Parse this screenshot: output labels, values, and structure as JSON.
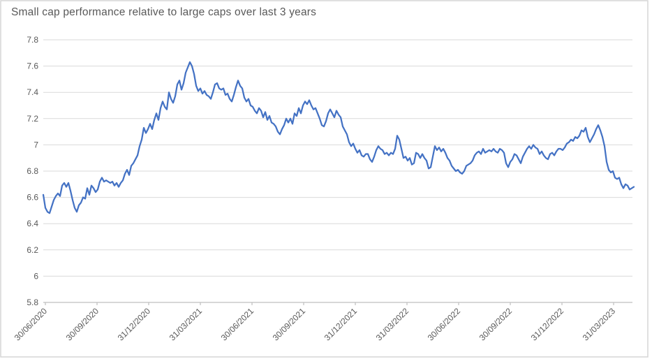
{
  "chart_data": {
    "type": "line",
    "title": "Small cap performance relative to large caps over last 3 years",
    "xlabel": "",
    "ylabel": "",
    "ylim": [
      5.8,
      7.8
    ],
    "grid": true,
    "legend": "none",
    "y_tick_labels": [
      "7.8",
      "7.6",
      "7.4",
      "7.2",
      "7",
      "6.8",
      "6.6",
      "6.4",
      "6.2",
      "6",
      "5.8"
    ],
    "x_tick_labels": [
      "30/06/2020",
      "30/09/2020",
      "31/12/2020",
      "31/03/2021",
      "30/06/2021",
      "30/09/2021",
      "31/12/2021",
      "31/03/2022",
      "30/06/2022",
      "30/09/2022",
      "31/12/2022",
      "31/03/2023"
    ],
    "series": [
      {
        "color": "#4472C4",
        "values": [
          6.62,
          6.52,
          6.49,
          6.48,
          6.53,
          6.58,
          6.61,
          6.63,
          6.61,
          6.69,
          6.71,
          6.68,
          6.71,
          6.65,
          6.58,
          6.52,
          6.49,
          6.54,
          6.56,
          6.6,
          6.59,
          6.67,
          6.62,
          6.69,
          6.67,
          6.64,
          6.66,
          6.72,
          6.75,
          6.72,
          6.73,
          6.72,
          6.71,
          6.72,
          6.69,
          6.71,
          6.68,
          6.71,
          6.73,
          6.78,
          6.81,
          6.77,
          6.84,
          6.86,
          6.89,
          6.92,
          6.99,
          7.04,
          7.13,
          7.09,
          7.12,
          7.16,
          7.12,
          7.19,
          7.24,
          7.19,
          7.28,
          7.33,
          7.29,
          7.27,
          7.4,
          7.35,
          7.32,
          7.37,
          7.46,
          7.49,
          7.42,
          7.47,
          7.55,
          7.59,
          7.63,
          7.6,
          7.54,
          7.45,
          7.41,
          7.43,
          7.39,
          7.41,
          7.38,
          7.37,
          7.35,
          7.4,
          7.46,
          7.47,
          7.43,
          7.42,
          7.43,
          7.38,
          7.39,
          7.35,
          7.33,
          7.38,
          7.44,
          7.49,
          7.45,
          7.43,
          7.36,
          7.33,
          7.35,
          7.3,
          7.29,
          7.26,
          7.24,
          7.28,
          7.26,
          7.21,
          7.25,
          7.19,
          7.22,
          7.17,
          7.16,
          7.14,
          7.1,
          7.08,
          7.12,
          7.15,
          7.2,
          7.17,
          7.2,
          7.16,
          7.24,
          7.22,
          7.28,
          7.24,
          7.3,
          7.33,
          7.31,
          7.34,
          7.3,
          7.27,
          7.28,
          7.24,
          7.2,
          7.15,
          7.14,
          7.18,
          7.24,
          7.27,
          7.24,
          7.21,
          7.26,
          7.23,
          7.21,
          7.14,
          7.11,
          7.08,
          7.02,
          6.99,
          7.01,
          6.97,
          6.94,
          6.96,
          6.92,
          6.91,
          6.93,
          6.93,
          6.89,
          6.87,
          6.91,
          6.96,
          6.99,
          6.97,
          6.96,
          6.93,
          6.94,
          6.92,
          6.94,
          6.93,
          6.97,
          7.07,
          7.04,
          6.97,
          6.9,
          6.91,
          6.88,
          6.9,
          6.85,
          6.86,
          6.94,
          6.93,
          6.9,
          6.93,
          6.9,
          6.88,
          6.82,
          6.83,
          6.91,
          6.99,
          6.96,
          6.98,
          6.95,
          6.97,
          6.94,
          6.9,
          6.88,
          6.84,
          6.82,
          6.8,
          6.81,
          6.79,
          6.78,
          6.8,
          6.84,
          6.85,
          6.86,
          6.88,
          6.92,
          6.94,
          6.95,
          6.93,
          6.97,
          6.94,
          6.95,
          6.96,
          6.95,
          6.97,
          6.95,
          6.94,
          6.97,
          6.96,
          6.94,
          6.86,
          6.83,
          6.87,
          6.89,
          6.93,
          6.92,
          6.89,
          6.86,
          6.91,
          6.94,
          6.97,
          6.99,
          6.97,
          7.0,
          6.98,
          6.97,
          6.93,
          6.95,
          6.92,
          6.9,
          6.89,
          6.93,
          6.94,
          6.92,
          6.95,
          6.97,
          6.97,
          6.96,
          6.98,
          7.01,
          7.02,
          7.04,
          7.03,
          7.06,
          7.05,
          7.07,
          7.11,
          7.1,
          7.13,
          7.06,
          7.02,
          7.05,
          7.08,
          7.12,
          7.15,
          7.11,
          7.06,
          6.99,
          6.87,
          6.81,
          6.79,
          6.8,
          6.75,
          6.74,
          6.75,
          6.7,
          6.67,
          6.7,
          6.69,
          6.66,
          6.67,
          6.68
        ]
      }
    ]
  },
  "colors": {
    "line": "#4472C4",
    "grid": "#D9D9D9",
    "axis": "#BFBFBF",
    "text": "#595959",
    "frame": "#D6D6D6",
    "background": "#FFFFFF"
  }
}
